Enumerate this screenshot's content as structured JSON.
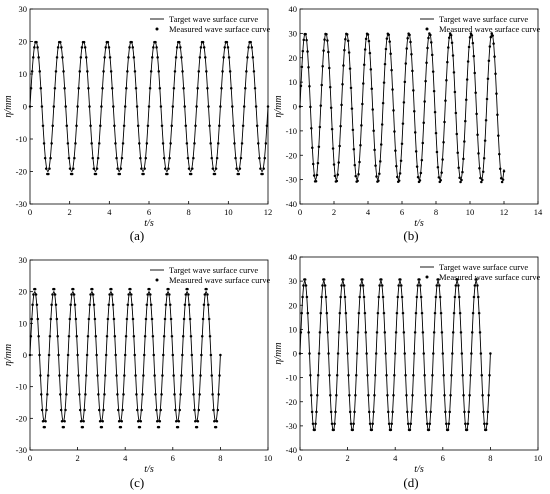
{
  "chart_data": [
    {
      "type": "line",
      "panel_label": "(a)",
      "ylabel": "η/mm",
      "xlabel": "t/s",
      "xlim": [
        0,
        12
      ],
      "ylim": [
        -30,
        30
      ],
      "xticks": [
        "0",
        "2",
        "4",
        "6",
        "8",
        "10",
        "12"
      ],
      "yticks": [
        "30",
        "20",
        "10",
        "0",
        "-10",
        "-20",
        "-30"
      ],
      "legend": "top-right",
      "grid": false,
      "series": [
        {
          "name": "Target wave surface curve",
          "style": "line",
          "amplitude": 20,
          "period": 1.2,
          "x_start": 0.0,
          "x_end": 12.0,
          "peak_times": [
            0.3,
            1.5,
            2.7,
            3.9,
            5.1,
            6.3,
            7.5,
            8.7,
            9.9,
            11.1
          ],
          "y_max": 20,
          "y_min": -20
        },
        {
          "name": "Measured wave surface curve",
          "style": "markers",
          "amplitude": 20,
          "period": 1.2,
          "x_start": 0.0,
          "x_end": 12.0,
          "y_max": 20,
          "y_min": -21
        }
      ]
    },
    {
      "type": "line",
      "panel_label": "(b)",
      "ylabel": "η/mm",
      "xlabel": "t/s",
      "xlim": [
        0,
        14
      ],
      "ylim": [
        -40,
        40
      ],
      "xticks": [
        "0",
        "2",
        "4",
        "6",
        "8",
        "10",
        "12",
        "14"
      ],
      "yticks": [
        "40",
        "30",
        "20",
        "10",
        "0",
        "-10",
        "-20",
        "-30",
        "-40"
      ],
      "legend": "top-right",
      "grid": false,
      "series": [
        {
          "name": "Target wave surface curve",
          "style": "line",
          "amplitude": 30,
          "period": 1.22,
          "x_start": 0.0,
          "x_end": 12.0,
          "y_max": 30,
          "y_min": -30
        },
        {
          "name": "Measured wave surface curve",
          "style": "markers",
          "amplitude": 30,
          "period": 1.22,
          "x_start": 0.0,
          "x_end": 12.0,
          "y_max": 30,
          "y_min": -31
        }
      ]
    },
    {
      "type": "line",
      "panel_label": "(c)",
      "ylabel": "η/mm",
      "xlabel": "t/s",
      "xlim": [
        0,
        10
      ],
      "ylim": [
        -30,
        30
      ],
      "xticks": [
        "0",
        "2",
        "4",
        "6",
        "8",
        "10"
      ],
      "yticks": [
        "30",
        "20",
        "10",
        "0",
        "-10",
        "-20",
        "-30"
      ],
      "legend": "top-right",
      "grid": false,
      "series": [
        {
          "name": "Target wave surface curve",
          "style": "line",
          "amplitude": 20,
          "period": 0.8,
          "x_start": 0.0,
          "x_end": 8.0,
          "y_max": 20,
          "y_min": -21
        },
        {
          "name": "Measured wave surface curve",
          "style": "markers",
          "amplitude": 20,
          "period": 0.8,
          "x_start": 0.0,
          "x_end": 8.0,
          "y_max": 21,
          "y_min": -23
        }
      ]
    },
    {
      "type": "line",
      "panel_label": "(d)",
      "ylabel": "η/mm",
      "xlabel": "t/s",
      "xlim": [
        0,
        10
      ],
      "ylim": [
        -40,
        40
      ],
      "xticks": [
        "0",
        "2",
        "4",
        "6",
        "8",
        "10"
      ],
      "yticks": [
        "40",
        "30",
        "20",
        "10",
        "0",
        "-10",
        "-20",
        "-30",
        "-40"
      ],
      "legend": "top-right",
      "grid": false,
      "series": [
        {
          "name": "Target wave surface curve",
          "style": "line",
          "amplitude": 30,
          "period": 0.8,
          "x_start": 0.0,
          "x_end": 8.0,
          "y_max": 30,
          "y_min": -32
        },
        {
          "name": "Measured wave surface curve",
          "style": "markers",
          "amplitude": 30,
          "period": 0.8,
          "x_start": 0.0,
          "x_end": 8.0,
          "y_max": 31,
          "y_min": -32
        }
      ]
    }
  ]
}
